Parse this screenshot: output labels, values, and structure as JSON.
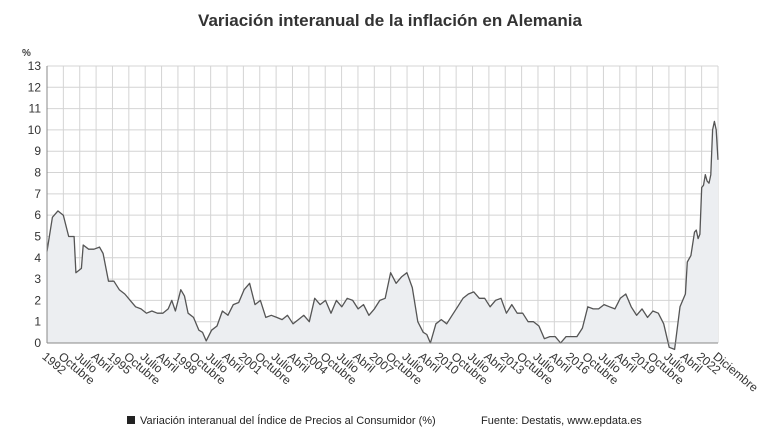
{
  "chart_data": {
    "type": "area",
    "title": "Variación interanual de la inflación en Alemania",
    "ylabel": "%",
    "ylim": [
      0,
      13
    ],
    "yticks": [
      "0",
      "1",
      "2",
      "3",
      "4",
      "5",
      "6",
      "7",
      "8",
      "9",
      "10",
      "11",
      "12",
      "13"
    ],
    "x_range": [
      "1992-01",
      "2022-12"
    ],
    "x_tick_labels": [
      "1992",
      "Octubre",
      "Julio",
      "Abril",
      "1995",
      "Octubre",
      "Julio",
      "Abril",
      "1998",
      "Octubre",
      "Julio",
      "Abril",
      "2001",
      "Octubre",
      "Julio",
      "Abril",
      "2004",
      "Octubre",
      "Julio",
      "Abril",
      "2007",
      "Octubre",
      "Julio",
      "Abril",
      "2010",
      "Octubre",
      "Julio",
      "Abril",
      "2013",
      "Octubre",
      "Julio",
      "Abril",
      "2016",
      "Octubre",
      "Julio",
      "Abril",
      "2019",
      "Octubre",
      "Julio",
      "Abril",
      "2022",
      "Diciembre"
    ],
    "grid": true,
    "colors": {
      "line": "#555555",
      "fill": "#eceef1",
      "grid": "#d4d4d4"
    },
    "series": [
      {
        "name": "Variación interanual del Índice de Precios al Consumidor (%)",
        "points": [
          [
            "1992-01",
            4.3
          ],
          [
            "1992-04",
            5.9
          ],
          [
            "1992-07",
            6.2
          ],
          [
            "1992-10",
            6.0
          ],
          [
            "1993-01",
            5.0
          ],
          [
            "1993-04",
            5.0
          ],
          [
            "1993-05",
            3.3
          ],
          [
            "1993-08",
            3.5
          ],
          [
            "1993-09",
            4.6
          ],
          [
            "1993-12",
            4.4
          ],
          [
            "1994-03",
            4.4
          ],
          [
            "1994-06",
            4.5
          ],
          [
            "1994-08",
            4.2
          ],
          [
            "1994-11",
            2.9
          ],
          [
            "1995-02",
            2.9
          ],
          [
            "1995-05",
            2.5
          ],
          [
            "1995-08",
            2.3
          ],
          [
            "1995-11",
            2.0
          ],
          [
            "1996-02",
            1.7
          ],
          [
            "1996-05",
            1.6
          ],
          [
            "1996-08",
            1.4
          ],
          [
            "1996-11",
            1.5
          ],
          [
            "1997-02",
            1.4
          ],
          [
            "1997-05",
            1.4
          ],
          [
            "1997-08",
            1.6
          ],
          [
            "1997-10",
            2.0
          ],
          [
            "1997-12",
            1.5
          ],
          [
            "1998-03",
            2.5
          ],
          [
            "1998-05",
            2.2
          ],
          [
            "1998-07",
            1.4
          ],
          [
            "1998-10",
            1.2
          ],
          [
            "1999-01",
            0.6
          ],
          [
            "1999-03",
            0.5
          ],
          [
            "1999-05",
            0.1
          ],
          [
            "1999-08",
            0.6
          ],
          [
            "1999-11",
            0.8
          ],
          [
            "2000-02",
            1.5
          ],
          [
            "2000-05",
            1.3
          ],
          [
            "2000-08",
            1.8
          ],
          [
            "2000-11",
            1.9
          ],
          [
            "2001-02",
            2.5
          ],
          [
            "2001-05",
            2.8
          ],
          [
            "2001-08",
            1.8
          ],
          [
            "2001-11",
            2.0
          ],
          [
            "2002-02",
            1.2
          ],
          [
            "2002-05",
            1.3
          ],
          [
            "2002-08",
            1.2
          ],
          [
            "2002-11",
            1.1
          ],
          [
            "2003-02",
            1.3
          ],
          [
            "2003-05",
            0.9
          ],
          [
            "2003-08",
            1.1
          ],
          [
            "2003-11",
            1.3
          ],
          [
            "2004-02",
            1.0
          ],
          [
            "2004-05",
            2.1
          ],
          [
            "2004-08",
            1.8
          ],
          [
            "2004-11",
            2.0
          ],
          [
            "2005-02",
            1.4
          ],
          [
            "2005-05",
            2.0
          ],
          [
            "2005-08",
            1.7
          ],
          [
            "2005-11",
            2.1
          ],
          [
            "2006-02",
            2.0
          ],
          [
            "2006-05",
            1.6
          ],
          [
            "2006-08",
            1.8
          ],
          [
            "2006-11",
            1.3
          ],
          [
            "2007-02",
            1.6
          ],
          [
            "2007-05",
            2.0
          ],
          [
            "2007-08",
            2.1
          ],
          [
            "2007-11",
            3.3
          ],
          [
            "2008-02",
            2.8
          ],
          [
            "2008-05",
            3.1
          ],
          [
            "2008-08",
            3.3
          ],
          [
            "2008-11",
            2.6
          ],
          [
            "2009-02",
            1.0
          ],
          [
            "2009-05",
            0.5
          ],
          [
            "2009-07",
            0.4
          ],
          [
            "2009-09",
            0.0
          ],
          [
            "2009-12",
            0.9
          ],
          [
            "2010-03",
            1.1
          ],
          [
            "2010-06",
            0.9
          ],
          [
            "2010-09",
            1.3
          ],
          [
            "2010-12",
            1.7
          ],
          [
            "2011-03",
            2.1
          ],
          [
            "2011-06",
            2.3
          ],
          [
            "2011-09",
            2.4
          ],
          [
            "2011-12",
            2.1
          ],
          [
            "2012-03",
            2.1
          ],
          [
            "2012-06",
            1.7
          ],
          [
            "2012-09",
            2.0
          ],
          [
            "2012-12",
            2.1
          ],
          [
            "2013-03",
            1.4
          ],
          [
            "2013-06",
            1.8
          ],
          [
            "2013-09",
            1.4
          ],
          [
            "2013-12",
            1.4
          ],
          [
            "2014-03",
            1.0
          ],
          [
            "2014-06",
            1.0
          ],
          [
            "2014-09",
            0.8
          ],
          [
            "2014-12",
            0.2
          ],
          [
            "2015-03",
            0.3
          ],
          [
            "2015-06",
            0.3
          ],
          [
            "2015-09",
            0.0
          ],
          [
            "2015-12",
            0.3
          ],
          [
            "2016-03",
            0.3
          ],
          [
            "2016-06",
            0.3
          ],
          [
            "2016-09",
            0.7
          ],
          [
            "2016-12",
            1.7
          ],
          [
            "2017-03",
            1.6
          ],
          [
            "2017-06",
            1.6
          ],
          [
            "2017-09",
            1.8
          ],
          [
            "2017-12",
            1.7
          ],
          [
            "2018-03",
            1.6
          ],
          [
            "2018-06",
            2.1
          ],
          [
            "2018-09",
            2.3
          ],
          [
            "2018-12",
            1.7
          ],
          [
            "2019-03",
            1.3
          ],
          [
            "2019-06",
            1.6
          ],
          [
            "2019-09",
            1.2
          ],
          [
            "2019-12",
            1.5
          ],
          [
            "2020-03",
            1.4
          ],
          [
            "2020-06",
            0.9
          ],
          [
            "2020-09",
            -0.2
          ],
          [
            "2020-12",
            -0.3
          ],
          [
            "2021-03",
            1.7
          ],
          [
            "2021-06",
            2.3
          ],
          [
            "2021-07",
            3.8
          ],
          [
            "2021-09",
            4.1
          ],
          [
            "2021-11",
            5.2
          ],
          [
            "2021-12",
            5.3
          ],
          [
            "2022-01",
            4.9
          ],
          [
            "2022-02",
            5.1
          ],
          [
            "2022-03",
            7.3
          ],
          [
            "2022-04",
            7.4
          ],
          [
            "2022-05",
            7.9
          ],
          [
            "2022-06",
            7.6
          ],
          [
            "2022-07",
            7.5
          ],
          [
            "2022-08",
            7.9
          ],
          [
            "2022-09",
            10.0
          ],
          [
            "2022-10",
            10.4
          ],
          [
            "2022-11",
            10.0
          ],
          [
            "2022-12",
            8.6
          ]
        ]
      }
    ]
  },
  "legend": {
    "label": "Variación interanual del Índice de Precios al Consumidor (%)",
    "source": "Fuente: Destatis, www.epdata.es"
  }
}
